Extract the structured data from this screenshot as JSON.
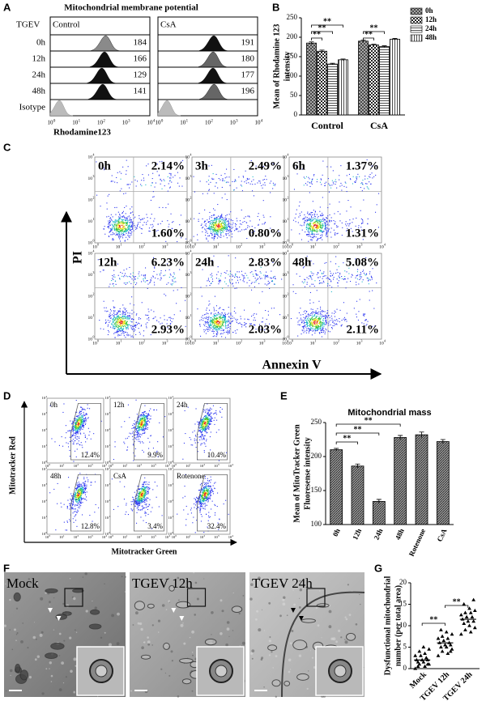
{
  "panel_labels": [
    "A",
    "B",
    "C",
    "D",
    "E",
    "F",
    "G"
  ],
  "log_ticks": {
    "base": "10",
    "exponents": [
      "0",
      "1",
      "2",
      "3",
      "4"
    ]
  },
  "panel_a": {
    "title": "Mitochondrial membrane potential",
    "group_label": "TGEV",
    "conditions": [
      "Control",
      "CsA"
    ],
    "rows": [
      "0h",
      "12h",
      "24h",
      "48h",
      "Isotype"
    ],
    "values": [
      [
        184,
        166,
        129,
        141
      ],
      [
        191,
        180,
        177,
        196
      ]
    ],
    "x_label": "Rhodamine123"
  },
  "panel_c": {
    "y_label": "PI",
    "x_label": "Annexin V",
    "plots": [
      {
        "time": "0h",
        "upper_right": "2.14%",
        "lower_right": "1.60%"
      },
      {
        "time": "3h",
        "upper_right": "2.49%",
        "lower_right": "0.80%"
      },
      {
        "time": "6h",
        "upper_right": "1.37%",
        "lower_right": "1.31%"
      },
      {
        "time": "12h",
        "upper_right": "6.23%",
        "lower_right": "2.93%"
      },
      {
        "time": "24h",
        "upper_right": "2.83%",
        "lower_right": "2.03%"
      },
      {
        "time": "48h",
        "upper_right": "5.08%",
        "lower_right": "2.11%"
      }
    ]
  },
  "panel_d": {
    "y_label": "Mitotracker Red",
    "x_label": "Mitotracker Green",
    "plots": [
      {
        "label": "0h",
        "percent": "12.4%"
      },
      {
        "label": "12h",
        "percent": "9.9%"
      },
      {
        "label": "24h",
        "percent": "10.4%"
      },
      {
        "label": "48h",
        "percent": "12.8%"
      },
      {
        "label": "CsA",
        "percent": "3.4%"
      },
      {
        "label": "Rotenone",
        "percent": "32.4%"
      }
    ]
  },
  "panel_f": {
    "images": [
      {
        "label": "Mock"
      },
      {
        "label": "TGEV 12h"
      },
      {
        "label": "TGEV 24h"
      }
    ]
  },
  "chart_data": [
    {
      "type": "bar",
      "ylabel": [
        "Mean of Rhodamine 123",
        "intensity"
      ],
      "categories": [
        "Control",
        "CsA"
      ],
      "series": [
        {
          "name": "0h",
          "pattern": "crosshatch",
          "values": [
            185,
            190
          ],
          "errors": [
            3,
            3
          ]
        },
        {
          "name": "12h",
          "pattern": "checker",
          "values": [
            164,
            180
          ],
          "errors": [
            3,
            2
          ]
        },
        {
          "name": "24h",
          "pattern": "hlines",
          "values": [
            131,
            176
          ],
          "errors": [
            2,
            2
          ]
        },
        {
          "name": "48h",
          "pattern": "vlines",
          "values": [
            142,
            195
          ],
          "errors": [
            2,
            2
          ]
        }
      ],
      "ylim": [
        0,
        250
      ],
      "yticks": [
        0,
        50,
        100,
        150,
        200,
        250
      ],
      "significance": [
        "**",
        "**",
        "**",
        "**",
        "**"
      ]
    },
    {
      "type": "bar",
      "title": "Mitochondrial mass",
      "ylabel": [
        "Mean of MitoTracker Green",
        "Fluoresense intensity"
      ],
      "categories": [
        "0h",
        "12h",
        "24h",
        "48h",
        "Rotenone",
        "CsA"
      ],
      "values": [
        210,
        186,
        134,
        228,
        232,
        222
      ],
      "errors": [
        2,
        3,
        3,
        3,
        4,
        3
      ],
      "pattern": "diagonal",
      "ylim": [
        100,
        250
      ],
      "yticks": [
        100,
        150,
        200,
        250
      ],
      "significance": [
        "**",
        "**",
        "**"
      ]
    },
    {
      "type": "dot",
      "ylabel": [
        "Dysfunctional mitochondrial",
        "number (per total area)"
      ],
      "categories": [
        "Mock",
        "TGEV 12h",
        "TGEV 24h"
      ],
      "marker": "triangle",
      "values": [
        [
          0,
          0.5,
          1,
          1,
          1.5,
          1.5,
          2,
          2,
          2,
          2.5,
          3,
          3,
          3.5,
          4,
          4.5,
          5,
          0.5,
          1
        ],
        [
          3,
          3.5,
          4,
          4.5,
          5,
          5,
          5.5,
          5.5,
          6,
          6,
          6.5,
          7,
          7,
          7.5,
          8,
          8.5,
          9,
          4
        ],
        [
          8,
          8.5,
          9,
          9.5,
          10,
          10.5,
          11,
          11,
          11.5,
          12,
          12,
          12.5,
          13,
          13,
          13.5,
          14,
          15,
          16
        ]
      ],
      "means": [
        2,
        6,
        11.5
      ],
      "ylim": [
        0,
        20
      ],
      "yticks": [
        0,
        5,
        10,
        15,
        20
      ],
      "significance": [
        "**",
        "**"
      ]
    }
  ]
}
